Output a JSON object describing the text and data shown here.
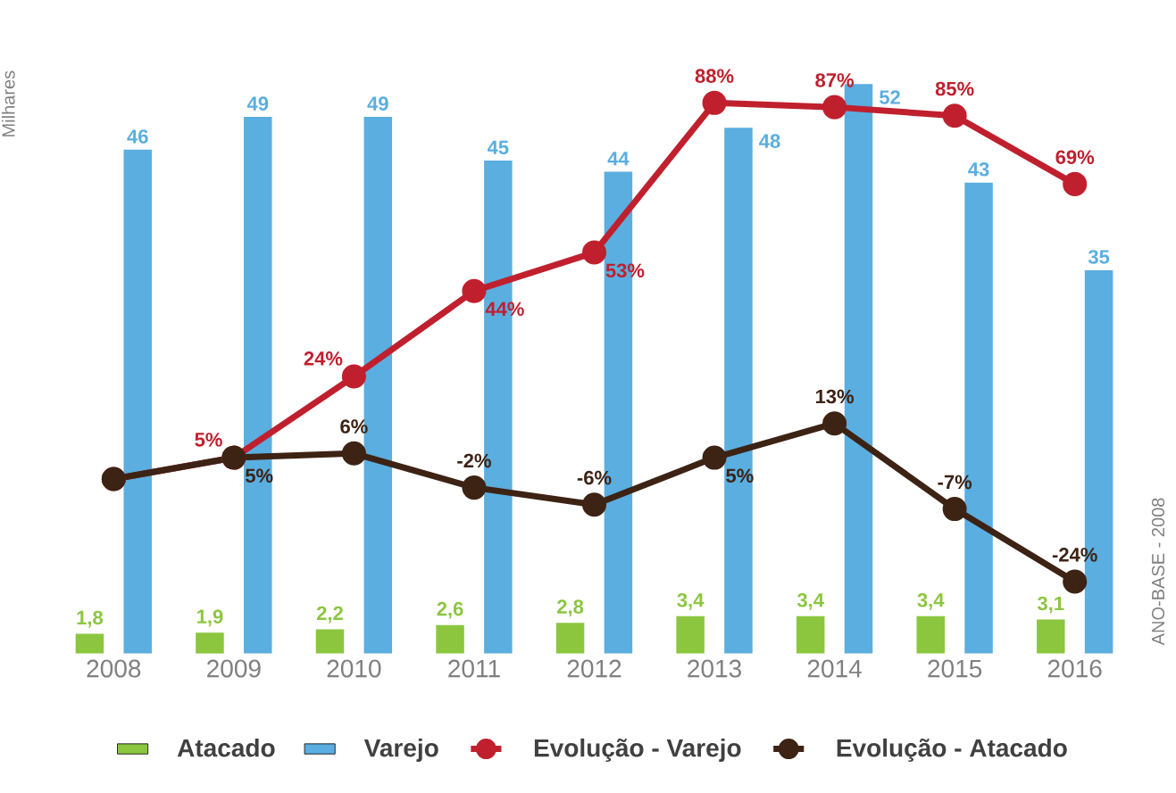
{
  "chart_data": {
    "type": "bar",
    "categories": [
      "2008",
      "2009",
      "2010",
      "2011",
      "2012",
      "2013",
      "2014",
      "2015",
      "2016"
    ],
    "ylabel": "Milhares",
    "y2label": "ANO-BASE - 2008",
    "legend": "bottom",
    "marker": "circle",
    "series": [
      {
        "name": "Atacado",
        "color": "#8cc63f",
        "values": [
          1.8,
          1.9,
          2.2,
          2.6,
          2.8,
          3.4,
          3.4,
          3.4,
          3.1
        ],
        "value_labels": [
          "1,8",
          "1,9",
          "2,2",
          "2,6",
          "2,8",
          "3,4",
          "3,4",
          "3,4",
          "3,1"
        ]
      },
      {
        "name": "Varejo",
        "color": "#5aaee0",
        "values": [
          46,
          49,
          49,
          45,
          44,
          48,
          52,
          43,
          35
        ],
        "value_labels": [
          "46",
          "49",
          "49",
          "45",
          "44",
          "48",
          "52",
          "43",
          "35"
        ]
      },
      {
        "name": "Evolução - Varejo",
        "type": "line",
        "axis": "y2",
        "color": "#c0202e",
        "values": [
          0,
          5,
          24,
          44,
          53,
          88,
          87,
          85,
          69
        ],
        "value_labels": [
          null,
          "5%",
          "24%",
          "44%",
          "53%",
          "88%",
          "87%",
          "85%",
          "69%"
        ]
      },
      {
        "name": "Evolução - Atacado",
        "type": "line",
        "axis": "y2",
        "color": "#3d2314",
        "values": [
          0,
          5,
          6,
          -2,
          -6,
          5,
          13,
          -7,
          -24
        ],
        "value_labels": [
          null,
          "5%",
          "6%",
          "-2%",
          "-6%",
          "5%",
          "13%",
          "-7%",
          "-24%"
        ]
      }
    ]
  }
}
